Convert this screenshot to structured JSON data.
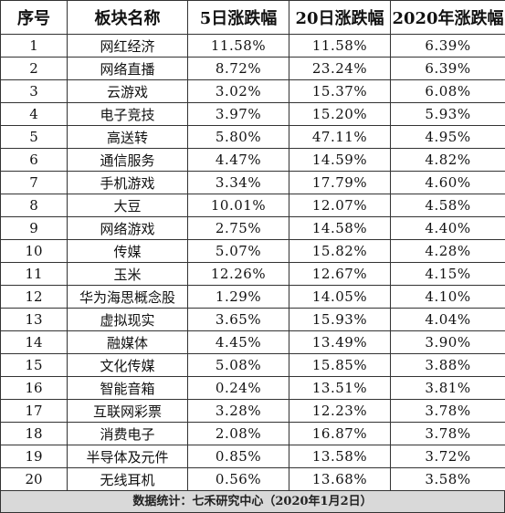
{
  "table": {
    "headers": [
      "序号",
      "板块名称",
      "5日涨跌幅",
      "20日涨跌幅",
      "2020年涨跌幅"
    ],
    "rows": [
      [
        "1",
        "网红经济",
        "11.58%",
        "11.58%",
        "6.39%"
      ],
      [
        "2",
        "网络直播",
        "8.72%",
        "23.24%",
        "6.39%"
      ],
      [
        "3",
        "云游戏",
        "3.02%",
        "15.37%",
        "6.08%"
      ],
      [
        "4",
        "电子竞技",
        "3.97%",
        "15.20%",
        "5.93%"
      ],
      [
        "5",
        "高送转",
        "5.80%",
        "47.11%",
        "4.95%"
      ],
      [
        "6",
        "通信服务",
        "4.47%",
        "14.59%",
        "4.82%"
      ],
      [
        "7",
        "手机游戏",
        "3.34%",
        "17.79%",
        "4.60%"
      ],
      [
        "8",
        "大豆",
        "10.01%",
        "12.07%",
        "4.58%"
      ],
      [
        "9",
        "网络游戏",
        "2.75%",
        "14.58%",
        "4.40%"
      ],
      [
        "10",
        "传媒",
        "5.07%",
        "15.82%",
        "4.28%"
      ],
      [
        "11",
        "玉米",
        "12.26%",
        "12.67%",
        "4.15%"
      ],
      [
        "12",
        "华为海思概念股",
        "1.29%",
        "14.05%",
        "4.10%"
      ],
      [
        "13",
        "虚拟现实",
        "3.65%",
        "15.93%",
        "4.04%"
      ],
      [
        "14",
        "融媒体",
        "4.45%",
        "13.49%",
        "3.90%"
      ],
      [
        "15",
        "文化传媒",
        "5.08%",
        "15.85%",
        "3.88%"
      ],
      [
        "16",
        "智能音箱",
        "0.24%",
        "13.51%",
        "3.81%"
      ],
      [
        "17",
        "互联网彩票",
        "3.28%",
        "12.23%",
        "3.78%"
      ],
      [
        "18",
        "消费电子",
        "2.08%",
        "16.87%",
        "3.78%"
      ],
      [
        "19",
        "半导体及元件",
        "0.85%",
        "13.58%",
        "3.72%"
      ],
      [
        "20",
        "无线耳机",
        "0.56%",
        "13.68%",
        "3.58%"
      ]
    ]
  },
  "footer": {
    "text": "数据统计：七禾研究中心（2020年1月2日）",
    "background": "#d9d9d9"
  }
}
